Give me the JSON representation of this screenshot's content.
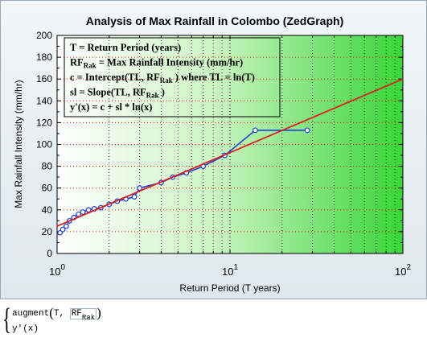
{
  "chart_data": {
    "type": "line",
    "title": "Analysis of Max Rainfall in Colombo (ZedGraph)",
    "xlabel": "Return Period (T years)",
    "ylabel": "Max Rainfall Intensity (mm/hr)",
    "xscale": "log",
    "xlim": [
      1,
      100
    ],
    "ylim": [
      0,
      200
    ],
    "yticks": [
      0,
      20,
      40,
      60,
      80,
      100,
      120,
      140,
      160,
      180,
      200
    ],
    "xticks": [
      {
        "base": "10",
        "exp": "0"
      },
      {
        "base": "10",
        "exp": "1"
      },
      {
        "base": "10",
        "exp": "2"
      }
    ],
    "grid": true,
    "legend_box": [
      {
        "text": "T = Return Period (years)"
      },
      {
        "text": "RF",
        "sub": "Rak",
        "rest": " = Max Rainfall Intensity (mm/hr)"
      },
      {
        "text": "c = Intercept(TL, RF",
        "sub": "Rak",
        "rest": " ) where  TL = ln(T)"
      },
      {
        "text": "sl = Slope(TL, RF",
        "sub": "Rak",
        "rest": " )"
      },
      {
        "text": "y'(x) = c + sl * ln(x)"
      }
    ],
    "series": [
      {
        "style": "line-markers",
        "color": "#1f3fd6",
        "x": [
          1.04,
          1.08,
          1.13,
          1.18,
          1.25,
          1.33,
          1.41,
          1.52,
          1.64,
          1.79,
          2.0,
          2.23,
          2.5,
          2.8,
          3.0,
          4.0,
          4.67,
          5.6,
          7.0,
          9.33,
          14.0,
          28.0
        ],
        "y": [
          19,
          22,
          25,
          30,
          33,
          36,
          38,
          40,
          41,
          42,
          45,
          48,
          50,
          52,
          60,
          65,
          70,
          74,
          80,
          90,
          113,
          113
        ]
      },
      {
        "style": "line",
        "color": "#d82020",
        "x": [
          1,
          100
        ],
        "y": [
          25,
          160
        ]
      }
    ]
  },
  "expressions": {
    "line1_fn": "augment",
    "line1_arg1": "T",
    "line1_arg2_main": "RF",
    "line1_arg2_sub": "Rak",
    "line2": "y'(x)"
  }
}
